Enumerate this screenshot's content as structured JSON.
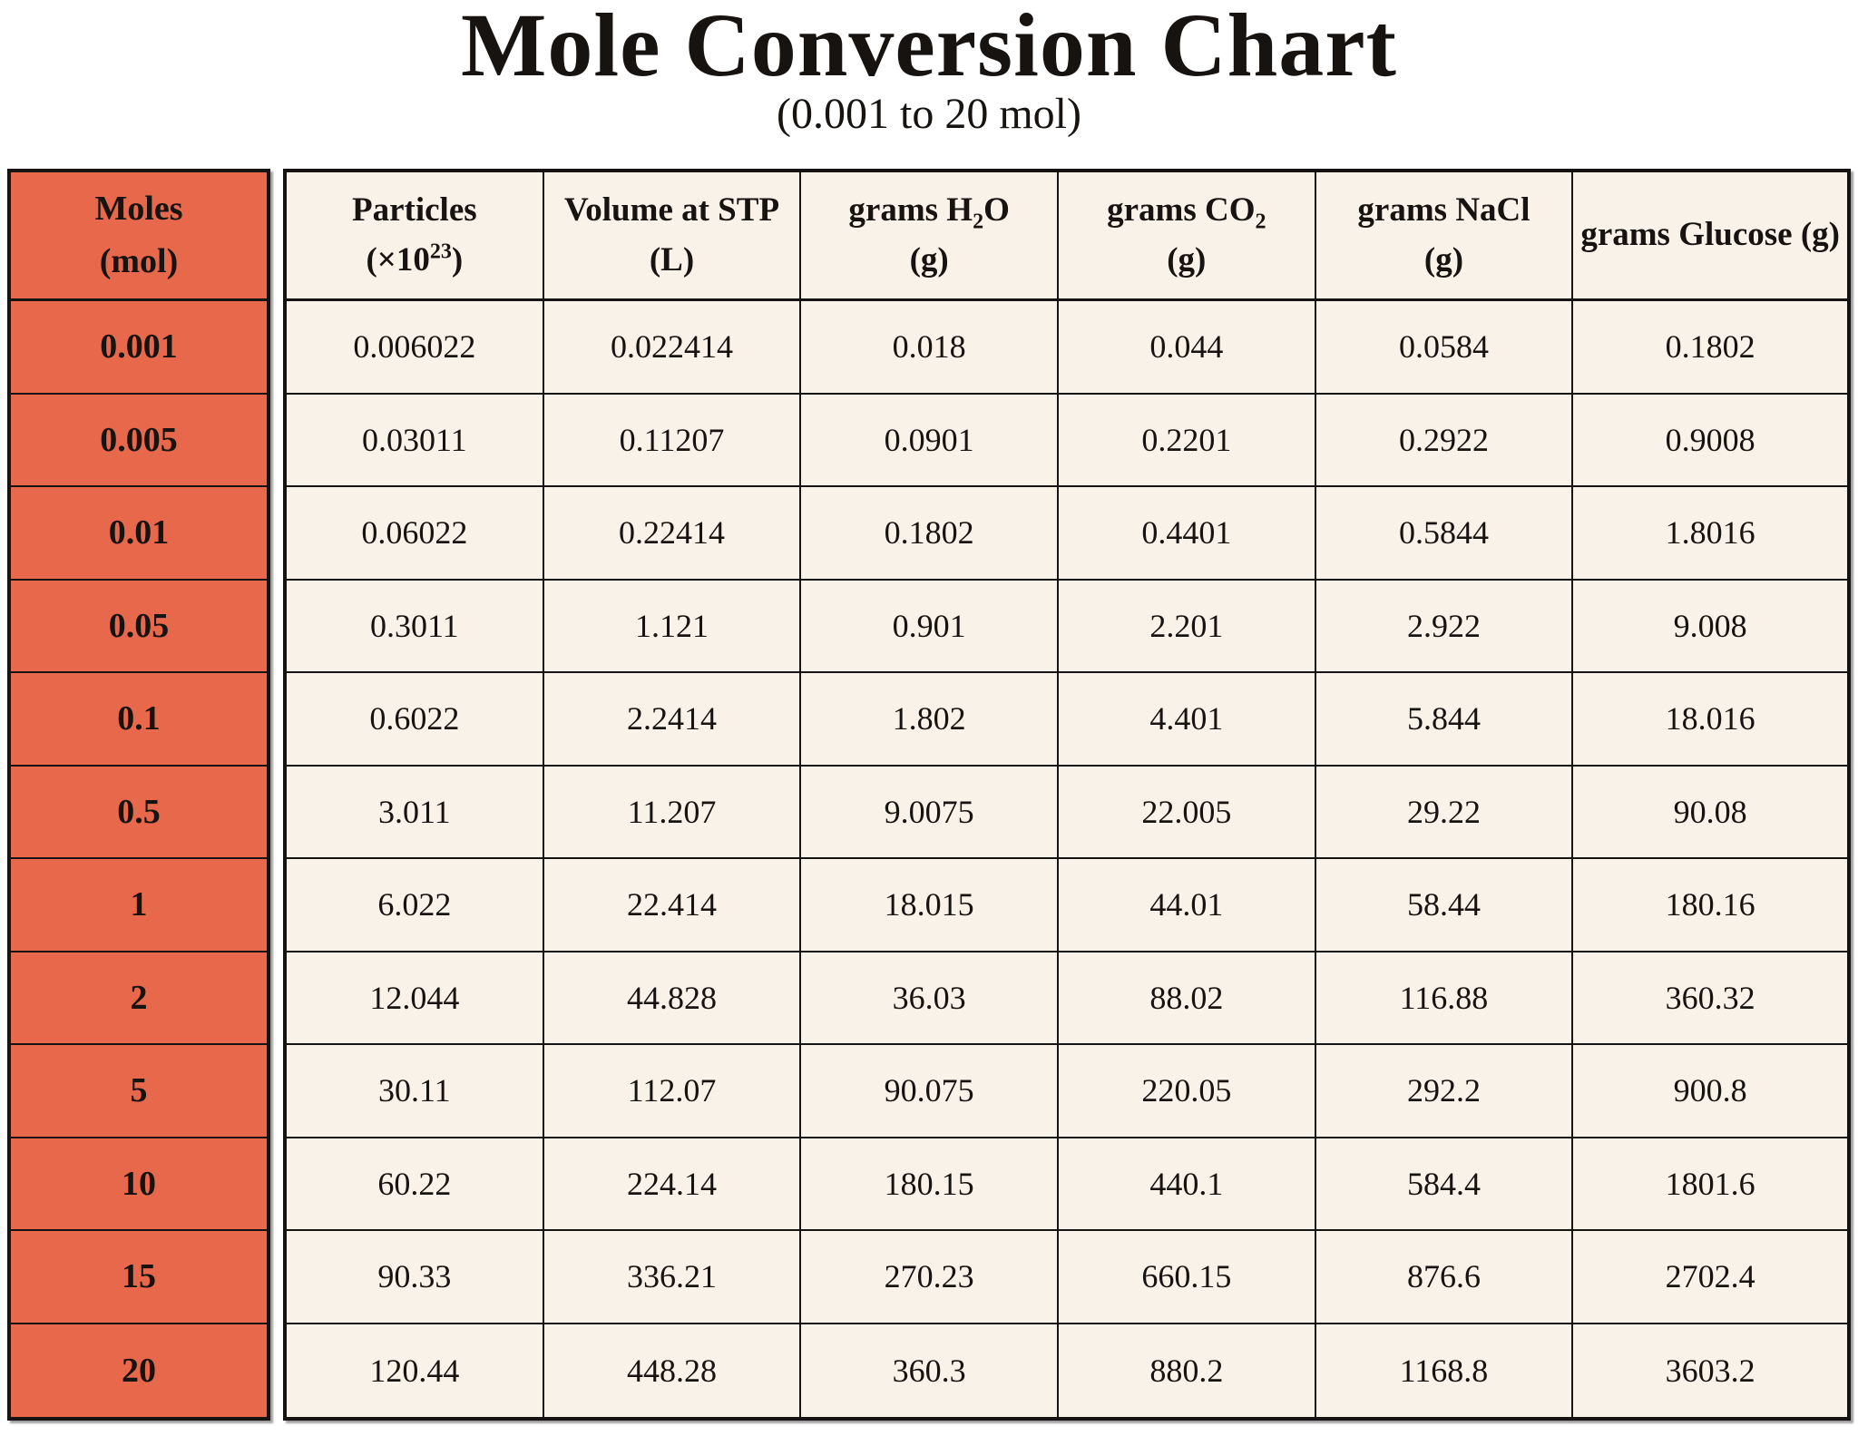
{
  "page": {
    "title": "Mole Conversion Chart",
    "subtitle": "(0.001 to 20 mol)"
  },
  "colors": {
    "moles_column_fill": "#E8684B",
    "table_cell_fill": "#F8F2E9",
    "border": "#161412",
    "text": "#171310",
    "page_background": "#FFFFFF"
  },
  "moles_column": {
    "header_line1": "Moles",
    "header_line2": "(mol)"
  },
  "table": {
    "headers": [
      {
        "name": "particles",
        "lines": [
          [
            {
              "t": "Particles"
            }
          ],
          [
            {
              "t": "(×10"
            },
            {
              "t": "23",
              "sup": true
            },
            {
              "t": ")"
            }
          ]
        ]
      },
      {
        "name": "volume-stp",
        "lines": [
          [
            {
              "t": "Volume at STP"
            }
          ],
          [
            {
              "t": "(L)"
            }
          ]
        ]
      },
      {
        "name": "grams-h2o",
        "lines": [
          [
            {
              "t": "grams H"
            },
            {
              "t": "2",
              "sub": true
            },
            {
              "t": "O"
            }
          ],
          [
            {
              "t": "(g)"
            }
          ]
        ]
      },
      {
        "name": "grams-co2",
        "lines": [
          [
            {
              "t": "grams CO"
            },
            {
              "t": "2",
              "sub": true
            }
          ],
          [
            {
              "t": "(g)"
            }
          ]
        ]
      },
      {
        "name": "grams-nacl",
        "lines": [
          [
            {
              "t": "grams NaCl"
            }
          ],
          [
            {
              "t": "(g)"
            }
          ]
        ]
      },
      {
        "name": "grams-glucose",
        "lines": [
          [
            {
              "t": "grams Glucose (g)"
            }
          ]
        ]
      }
    ]
  },
  "chart_data": {
    "type": "table",
    "title": "Mole Conversion Chart",
    "subtitle": "(0.001 to 20 mol)",
    "columns": [
      "Moles (mol)",
      "Particles (×10²³)",
      "Volume at STP (L)",
      "grams H₂O (g)",
      "grams CO₂ (g)",
      "grams NaCl (g)",
      "grams Glucose (g)"
    ],
    "rows": [
      [
        0.001,
        0.006022,
        0.022414,
        0.018,
        0.044,
        0.0584,
        0.1802
      ],
      [
        0.005,
        0.03011,
        0.11207,
        0.0901,
        0.2201,
        0.2922,
        0.9008
      ],
      [
        0.01,
        0.06022,
        0.22414,
        0.1802,
        0.4401,
        0.5844,
        1.8016
      ],
      [
        0.05,
        0.3011,
        1.121,
        0.901,
        2.201,
        2.922,
        9.008
      ],
      [
        0.1,
        0.6022,
        2.2414,
        1.802,
        4.401,
        5.844,
        18.016
      ],
      [
        0.5,
        3.011,
        11.207,
        9.0075,
        22.005,
        29.22,
        90.08
      ],
      [
        1,
        6.022,
        22.414,
        18.015,
        44.01,
        58.44,
        180.16
      ],
      [
        2,
        12.044,
        44.828,
        36.03,
        88.02,
        116.88,
        360.32
      ],
      [
        5,
        30.11,
        112.07,
        90.075,
        220.05,
        292.2,
        900.8
      ],
      [
        10,
        60.22,
        224.14,
        180.15,
        440.1,
        584.4,
        1801.6
      ],
      [
        15,
        90.33,
        336.21,
        270.23,
        660.15,
        876.6,
        2702.4
      ],
      [
        20,
        120.44,
        448.28,
        360.3,
        880.2,
        1168.8,
        3603.2
      ]
    ]
  }
}
